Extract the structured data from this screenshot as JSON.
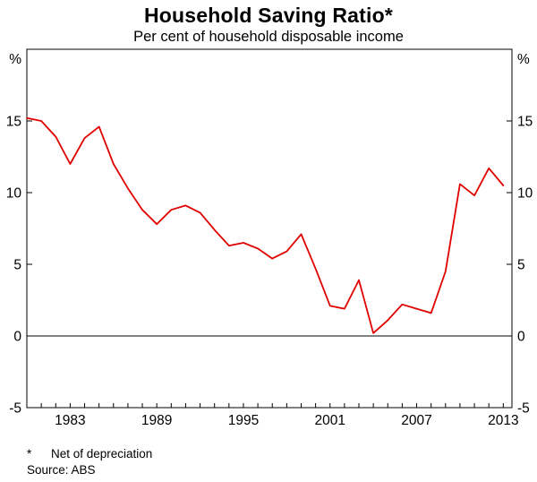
{
  "chart_data": {
    "type": "line",
    "title": "Household Saving Ratio*",
    "subtitle": "Per cent of household disposable income",
    "unit": "%",
    "x": [
      1980,
      1981,
      1982,
      1983,
      1984,
      1985,
      1986,
      1987,
      1988,
      1989,
      1990,
      1991,
      1992,
      1993,
      1994,
      1995,
      1996,
      1997,
      1998,
      1999,
      2000,
      2001,
      2002,
      2003,
      2004,
      2005,
      2006,
      2007,
      2008,
      2009,
      2010,
      2011,
      2012,
      2013
    ],
    "series": [
      {
        "name": "Household saving ratio (net of depreciation)",
        "color": "#e00000",
        "values": [
          15.2,
          15.0,
          13.9,
          12.0,
          13.8,
          14.6,
          12.0,
          10.3,
          8.8,
          7.8,
          8.8,
          9.1,
          8.6,
          7.4,
          6.3,
          6.5,
          6.1,
          5.4,
          5.9,
          7.1,
          4.7,
          2.1,
          1.9,
          3.9,
          0.2,
          1.1,
          2.2,
          1.9,
          1.6,
          4.5,
          10.6,
          9.8,
          11.7,
          10.5
        ]
      }
    ],
    "x_range": [
      1980,
      2013.6
    ],
    "ylim": [
      -5,
      20
    ],
    "yticks": [
      -5,
      0,
      5,
      10,
      15
    ],
    "xticks": [
      1983,
      1989,
      1995,
      2001,
      2007,
      2013
    ],
    "grid": false,
    "zero_line": true,
    "legend_position": "none"
  },
  "footnotes": {
    "marker": "*",
    "note": "Net of depreciation",
    "source": "Source: ABS"
  }
}
